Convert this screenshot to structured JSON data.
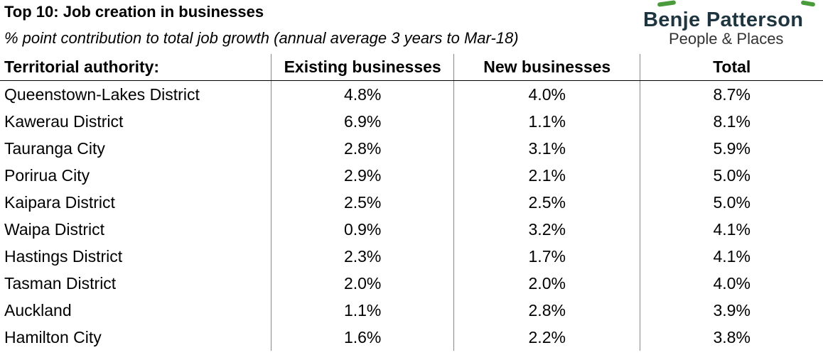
{
  "header": {
    "title": "Top 10: Job creation in businesses",
    "subtitle": "% point contribution to total job growth (annual average 3 years to Mar-18)"
  },
  "brand": {
    "name": "Benje Patterson",
    "tagline": "People & Places",
    "accent_color": "#4a9b3c",
    "text_color": "#1e3540"
  },
  "table": {
    "columns": [
      "Territorial authority:",
      "Existing businesses",
      "New businesses",
      "Total"
    ],
    "rows": [
      [
        "Queenstown-Lakes District",
        "4.8%",
        "4.0%",
        "8.7%"
      ],
      [
        "Kawerau District",
        "6.9%",
        "1.1%",
        "8.1%"
      ],
      [
        "Tauranga City",
        "2.8%",
        "3.1%",
        "5.9%"
      ],
      [
        "Porirua City",
        "2.9%",
        "2.1%",
        "5.0%"
      ],
      [
        "Kaipara District",
        "2.5%",
        "2.5%",
        "5.0%"
      ],
      [
        "Waipa District",
        "0.9%",
        "3.2%",
        "4.1%"
      ],
      [
        "Hastings District",
        "2.3%",
        "1.7%",
        "4.1%"
      ],
      [
        "Tasman District",
        "2.0%",
        "2.0%",
        "4.0%"
      ],
      [
        "Auckland",
        "1.1%",
        "2.8%",
        "3.9%"
      ],
      [
        "Hamilton City",
        "1.6%",
        "2.2%",
        "3.8%"
      ]
    ]
  }
}
